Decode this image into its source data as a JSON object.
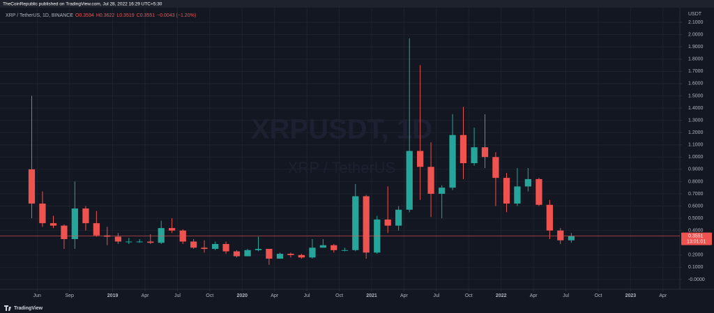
{
  "header": "TheCoinRepublic published on TradingView.com, Jul 28, 2022 16:29 UTC+5:30",
  "footer": "TradingView",
  "chart_data": {
    "type": "candlestick",
    "legend": {
      "symbol": "XRP / TetherUS, 1D, BINANCE",
      "open": "O0.3594",
      "high": "H0.3622",
      "low": "L0.3519",
      "close": "C0.3551",
      "change": "−0.0043 (−1.20%)"
    },
    "watermark": "XRPUSDT, 1D",
    "watermark_sub": "XRP / TetherUS",
    "y_unit": "USDT",
    "up_color": "#26a69a",
    "down_color": "#ef5350",
    "last_price": 0.3551,
    "countdown": "13:01:01",
    "x": [
      2018.375,
      2018.458,
      2018.542,
      2018.625,
      2018.708,
      2018.792,
      2018.875,
      2018.958,
      2019.042,
      2019.125,
      2019.208,
      2019.292,
      2019.375,
      2019.458,
      2019.542,
      2019.625,
      2019.708,
      2019.792,
      2019.875,
      2019.958,
      2020.042,
      2020.125,
      2020.208,
      2020.292,
      2020.375,
      2020.458,
      2020.542,
      2020.625,
      2020.708,
      2020.792,
      2020.875,
      2020.958,
      2021.042,
      2021.125,
      2021.208,
      2021.292,
      2021.375,
      2021.458,
      2021.542,
      2021.625,
      2021.708,
      2021.792,
      2021.875,
      2021.958,
      2022.042,
      2022.125,
      2022.208,
      2022.292,
      2022.375,
      2022.458,
      2022.542
    ],
    "open": [
      0.9,
      0.62,
      0.46,
      0.44,
      0.33,
      0.58,
      0.46,
      0.36,
      0.35,
      0.31,
      0.31,
      0.31,
      0.3,
      0.42,
      0.4,
      0.31,
      0.26,
      0.25,
      0.29,
      0.23,
      0.19,
      0.24,
      0.25,
      0.17,
      0.21,
      0.2,
      0.18,
      0.26,
      0.28,
      0.24,
      0.24,
      0.68,
      0.22,
      0.49,
      0.44,
      0.57,
      1.05,
      0.92,
      0.7,
      0.75,
      1.18,
      0.95,
      1.08,
      1.0,
      0.83,
      0.62,
      0.76,
      0.82,
      0.61,
      0.4,
      0.32
    ],
    "high": [
      1.5,
      0.72,
      0.52,
      0.45,
      0.8,
      0.6,
      0.56,
      0.43,
      0.38,
      0.34,
      0.33,
      0.37,
      0.48,
      0.5,
      0.41,
      0.33,
      0.32,
      0.31,
      0.31,
      0.24,
      0.25,
      0.35,
      0.25,
      0.22,
      0.22,
      0.21,
      0.33,
      0.33,
      0.29,
      0.26,
      0.78,
      0.69,
      0.52,
      0.76,
      0.6,
      1.97,
      1.75,
      1.12,
      0.77,
      1.35,
      1.41,
      1.24,
      1.35,
      1.04,
      0.87,
      0.91,
      0.91,
      0.83,
      0.65,
      0.42,
      0.38
    ],
    "low": [
      0.5,
      0.43,
      0.42,
      0.25,
      0.25,
      0.4,
      0.35,
      0.28,
      0.29,
      0.29,
      0.3,
      0.29,
      0.29,
      0.38,
      0.29,
      0.25,
      0.22,
      0.24,
      0.21,
      0.18,
      0.19,
      0.23,
      0.12,
      0.17,
      0.18,
      0.17,
      0.17,
      0.26,
      0.22,
      0.23,
      0.23,
      0.17,
      0.21,
      0.38,
      0.4,
      0.55,
      0.65,
      0.51,
      0.5,
      0.73,
      0.82,
      0.93,
      0.91,
      0.6,
      0.55,
      0.6,
      0.72,
      0.6,
      0.33,
      0.29,
      0.3
    ],
    "close": [
      0.62,
      0.46,
      0.44,
      0.33,
      0.58,
      0.46,
      0.36,
      0.35,
      0.31,
      0.31,
      0.31,
      0.3,
      0.42,
      0.4,
      0.31,
      0.26,
      0.25,
      0.29,
      0.23,
      0.19,
      0.24,
      0.25,
      0.17,
      0.21,
      0.2,
      0.18,
      0.26,
      0.28,
      0.24,
      0.24,
      0.68,
      0.22,
      0.49,
      0.44,
      0.57,
      1.05,
      0.92,
      0.7,
      0.75,
      1.18,
      0.95,
      1.08,
      1.0,
      0.83,
      0.62,
      0.76,
      0.82,
      0.61,
      0.4,
      0.32,
      0.3551
    ],
    "xlim": [
      2018.13,
      2023.38
    ],
    "xticks": [
      {
        "value": 2018.417,
        "label": "Jun"
      },
      {
        "value": 2018.667,
        "label": "Sep"
      },
      2019,
      {
        "value": 2019.25,
        "label": "Apr"
      },
      {
        "value": 2019.5,
        "label": "Jul"
      },
      {
        "value": 2019.75,
        "label": "Oct"
      },
      2020,
      {
        "value": 2020.25,
        "label": "Apr"
      },
      {
        "value": 2020.5,
        "label": "Jul"
      },
      {
        "value": 2020.75,
        "label": "Oct"
      },
      2021,
      {
        "value": 2021.25,
        "label": "Apr"
      },
      {
        "value": 2021.5,
        "label": "Jul"
      },
      {
        "value": 2021.75,
        "label": "Oct"
      },
      2022,
      {
        "value": 2022.25,
        "label": "Apr"
      },
      {
        "value": 2022.5,
        "label": "Jul"
      },
      {
        "value": 2022.75,
        "label": "Oct"
      },
      2023,
      {
        "value": 2023.25,
        "label": "Apr"
      }
    ],
    "ylim": [
      -0.08,
      2.22
    ],
    "yticks": [
      {
        "value": 2.1,
        "label": "2.1000"
      },
      {
        "value": 2.0,
        "label": "2.0000"
      },
      {
        "value": 1.9,
        "label": "1.9000"
      },
      {
        "value": 1.8,
        "label": "1.8000"
      },
      {
        "value": 1.7,
        "label": "1.7000"
      },
      {
        "value": 1.6,
        "label": "1.6000"
      },
      {
        "value": 1.5,
        "label": "1.5000"
      },
      {
        "value": 1.4,
        "label": "1.4000"
      },
      {
        "value": 1.3,
        "label": "1.3000"
      },
      {
        "value": 1.2,
        "label": "1.2000"
      },
      {
        "value": 1.1,
        "label": "1.1000"
      },
      {
        "value": 1.0,
        "label": "1.0000"
      },
      {
        "value": 0.9,
        "label": "0.9000"
      },
      {
        "value": 0.8,
        "label": "0.8000"
      },
      {
        "value": 0.7,
        "label": "0.7000"
      },
      {
        "value": 0.6,
        "label": "0.6000"
      },
      {
        "value": 0.5,
        "label": "0.5000"
      },
      {
        "value": 0.4,
        "label": "0.4000"
      },
      {
        "value": 0.2,
        "label": "0.2000"
      },
      {
        "value": 0.1,
        "label": "0.1000"
      },
      {
        "value": 0,
        "label": "-0.0000"
      }
    ],
    "grid": true
  }
}
